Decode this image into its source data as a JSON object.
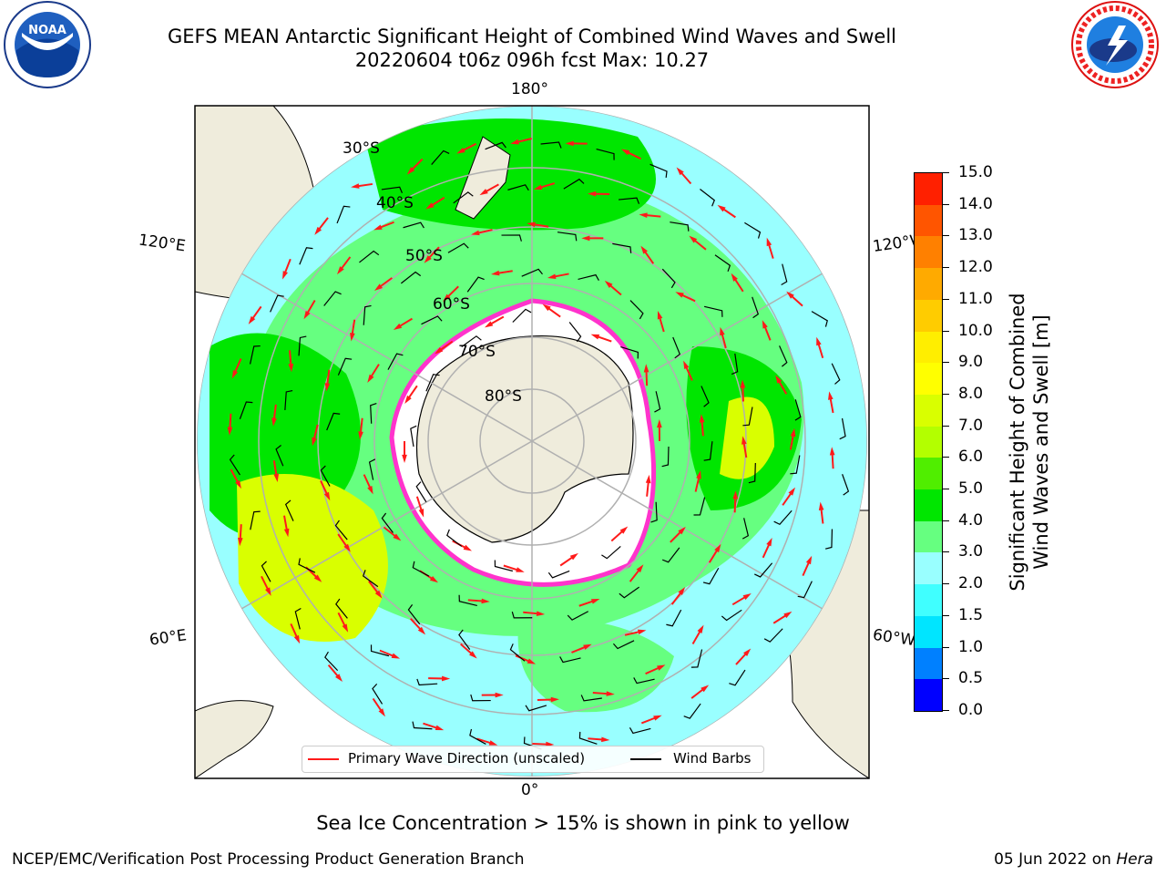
{
  "title": {
    "line1": "GEFS MEAN Antarctic Significant Height of Combined Wind Waves and Swell",
    "line2": "20220604 t06z 096h fcst   Max: 10.27"
  },
  "logos": {
    "noaa": {
      "name": "NOAA",
      "ring_text": "NATIONAL OCEANIC AND ATMOSPHERIC ADMINISTRATION · U.S. DEPARTMENT OF COMMERCE",
      "icon": "noaa-logo"
    },
    "nws": {
      "name": "NATIONAL WEATHER SERVICE",
      "icon": "nws-logo"
    }
  },
  "map": {
    "projection": "south-polar-stereographic",
    "longitude_labels": {
      "top": "180°",
      "bottom": "0°",
      "upper_left": "120°E",
      "lower_left": "60°E",
      "upper_right": "120°W",
      "lower_right": "60°W"
    },
    "latitude_labels": [
      "30°S",
      "40°S",
      "50°S",
      "60°S",
      "70°S",
      "80°S"
    ],
    "colors": {
      "land": "#efecdc",
      "sea_ice": "#ffffff",
      "ice_edge": "#ff33cc",
      "wave_arrow": "#ff1a1a",
      "wind_barb": "#000000",
      "grid": "#b0b0b0"
    }
  },
  "colorbar": {
    "label": "Significant Height of Combined\nWind Waves and Swell [m]",
    "levels": [
      "0.0",
      "0.5",
      "1.0",
      "1.5",
      "2.0",
      "3.0",
      "4.0",
      "5.0",
      "6.0",
      "7.0",
      "8.0",
      "9.0",
      "10.0",
      "11.0",
      "12.0",
      "13.0",
      "14.0",
      "15.0"
    ],
    "colors": [
      "#0000ff",
      "#0080ff",
      "#00e5ff",
      "#40ffff",
      "#99ffff",
      "#66ff80",
      "#00e600",
      "#50ee00",
      "#b3ff00",
      "#d9ff00",
      "#ffff00",
      "#ffee00",
      "#ffcc00",
      "#ffaa00",
      "#ff8000",
      "#ff5500",
      "#ff2000"
    ]
  },
  "legend": {
    "wave": "Primary Wave Direction (unscaled)",
    "wind": "Wind Barbs"
  },
  "subtitle": "Sea Ice Concentration > 15% is shown in pink to yellow",
  "footer": {
    "left": "NCEP/EMC/Verification Post Processing Product Generation Branch",
    "right_date": "05 Jun 2022 on ",
    "right_host": "Hera"
  }
}
